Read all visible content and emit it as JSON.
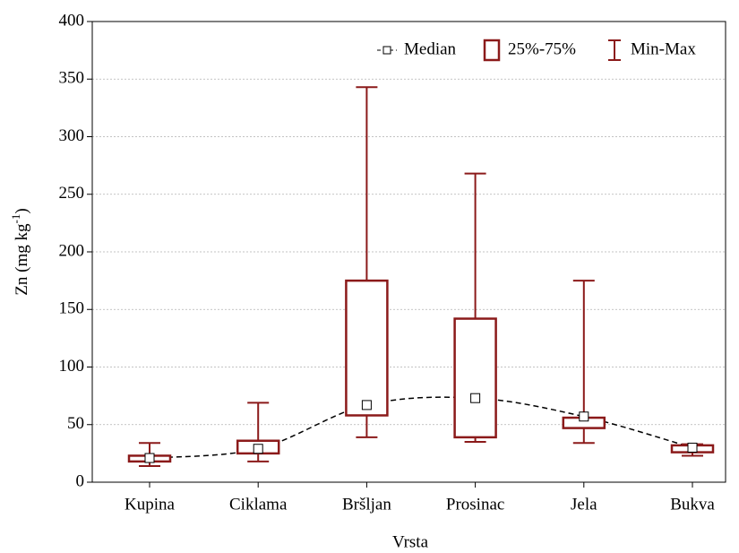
{
  "chart_data": {
    "type": "box",
    "x_label": "Vrsta",
    "y_label": {
      "text": "Zn (mg kg",
      "sup": "-1",
      "end": ")"
    },
    "categories": [
      "Kupina",
      "Ciklama",
      "Bršljan",
      "Prosinac",
      "Jela",
      "Bukva"
    ],
    "min": [
      14,
      18,
      39,
      35,
      34,
      23
    ],
    "q1": [
      18,
      25,
      58,
      39,
      47,
      26
    ],
    "median": [
      21,
      29,
      67,
      73,
      57,
      30
    ],
    "q3": [
      23,
      36,
      175,
      142,
      56,
      32
    ],
    "max": [
      34,
      69,
      343,
      268,
      175,
      33
    ],
    "color": "#8b1a1a",
    "ylim": [
      0,
      400
    ],
    "yticks": [
      0,
      50,
      100,
      150,
      200,
      250,
      300,
      350,
      400
    ],
    "grid": true,
    "legend": {
      "position": "top-right",
      "median": "Median",
      "box": "25%-75%",
      "whisker": "Min-Max"
    }
  }
}
